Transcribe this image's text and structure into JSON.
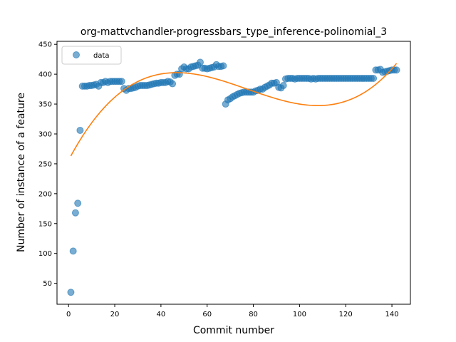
{
  "chart_data": {
    "type": "scatter",
    "title": "org-mattvchandler-progressbars_type_inference-polinomial_3",
    "xlabel": "Commit number",
    "ylabel": "Number of instance of a feature",
    "xlim": [
      -5,
      148
    ],
    "ylim": [
      15,
      455
    ],
    "xticks": [
      0,
      20,
      40,
      60,
      80,
      100,
      120,
      140
    ],
    "yticks": [
      50,
      100,
      150,
      200,
      250,
      300,
      350,
      400,
      450
    ],
    "grid": false,
    "legend": {
      "placement": "top-left",
      "entries": [
        "data"
      ]
    },
    "colors": {
      "data": "#1f77b4",
      "fit": "#ff7f0e"
    },
    "series": [
      {
        "name": "data",
        "kind": "scatter",
        "x": [
          1,
          2,
          3,
          4,
          5,
          6,
          7,
          8,
          9,
          10,
          11,
          12,
          13,
          14,
          15,
          16,
          17,
          18,
          19,
          20,
          21,
          22,
          23,
          24,
          25,
          26,
          27,
          28,
          29,
          30,
          31,
          32,
          33,
          34,
          35,
          36,
          37,
          38,
          39,
          40,
          41,
          42,
          43,
          44,
          45,
          46,
          47,
          48,
          49,
          50,
          51,
          52,
          53,
          54,
          55,
          56,
          57,
          58,
          59,
          60,
          61,
          62,
          63,
          64,
          65,
          66,
          67,
          68,
          69,
          70,
          71,
          72,
          73,
          74,
          75,
          76,
          77,
          78,
          79,
          80,
          81,
          82,
          83,
          84,
          85,
          86,
          87,
          88,
          89,
          90,
          91,
          92,
          93,
          94,
          95,
          96,
          97,
          98,
          99,
          100,
          101,
          102,
          103,
          104,
          105,
          106,
          107,
          108,
          109,
          110,
          111,
          112,
          113,
          114,
          115,
          116,
          117,
          118,
          119,
          120,
          121,
          122,
          123,
          124,
          125,
          126,
          127,
          128,
          129,
          130,
          131,
          132,
          133,
          134,
          135,
          136,
          137,
          138,
          139,
          140,
          141,
          142
        ],
        "y": [
          35,
          104,
          168,
          184,
          306,
          380,
          380,
          380,
          381,
          381,
          382,
          383,
          380,
          386,
          386,
          388,
          386,
          388,
          388,
          388,
          388,
          388,
          388,
          376,
          373,
          376,
          376,
          377,
          378,
          380,
          381,
          381,
          381,
          381,
          382,
          383,
          384,
          385,
          385,
          386,
          386,
          386,
          388,
          387,
          384,
          398,
          400,
          400,
          409,
          412,
          409,
          409,
          412,
          413,
          414,
          415,
          420,
          410,
          410,
          409,
          410,
          411,
          412,
          416,
          413,
          413,
          414,
          350,
          357,
          359,
          362,
          364,
          366,
          368,
          369,
          370,
          370,
          370,
          370,
          370,
          372,
          373,
          375,
          375,
          378,
          380,
          382,
          385,
          385,
          386,
          378,
          377,
          381,
          392,
          393,
          393,
          393,
          392,
          393,
          393,
          393,
          393,
          393,
          393,
          392,
          393,
          392,
          393,
          393,
          393,
          393,
          393,
          393,
          393,
          393,
          393,
          393,
          393,
          393,
          393,
          393,
          393,
          393,
          393,
          393,
          393,
          393,
          393,
          393,
          393,
          393,
          393,
          407,
          407,
          408,
          403,
          404,
          405,
          406,
          407,
          407,
          407
        ]
      },
      {
        "name": "",
        "kind": "line",
        "model": "cubic",
        "x_range": [
          1,
          142
        ],
        "coefficients": [
          256.0,
          7.32,
          -0.1121,
          0.000483
        ]
      }
    ]
  }
}
